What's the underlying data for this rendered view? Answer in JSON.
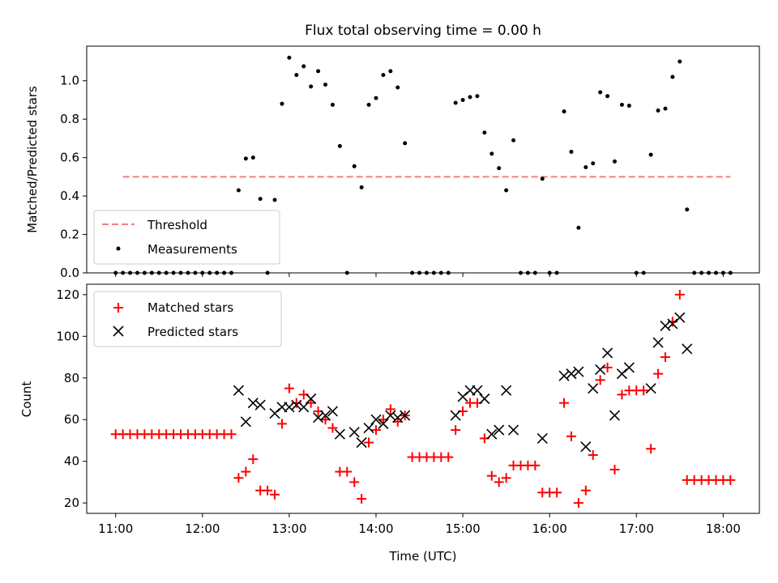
{
  "chart_data": [
    {
      "type": "scatter",
      "title": "Flux total observing time = 0.00 h",
      "xlabel": "",
      "ylabel": "Matched/Predicted stars",
      "xlim": [
        "10:40",
        "18:25"
      ],
      "ylim": [
        0,
        1.18
      ],
      "yticks": [
        "0.0",
        "0.2",
        "0.4",
        "0.6",
        "0.8",
        "1.0"
      ],
      "legend_position": "lower-left",
      "threshold": {
        "name": "Threshold",
        "value": 0.5,
        "x_range": [
          "11:05",
          "18:05"
        ],
        "color": "#f08080"
      },
      "series": [
        {
          "name": "Measurements",
          "color": "#000000",
          "points": [
            [
              "11:00",
              0
            ],
            [
              "11:05",
              0
            ],
            [
              "11:10",
              0
            ],
            [
              "11:15",
              0
            ],
            [
              "11:20",
              0
            ],
            [
              "11:25",
              0
            ],
            [
              "11:30",
              0
            ],
            [
              "11:35",
              0
            ],
            [
              "11:40",
              0
            ],
            [
              "11:45",
              0
            ],
            [
              "11:50",
              0
            ],
            [
              "11:55",
              0
            ],
            [
              "12:00",
              0
            ],
            [
              "12:05",
              0
            ],
            [
              "12:10",
              0
            ],
            [
              "12:15",
              0
            ],
            [
              "12:20",
              0
            ],
            [
              "12:25",
              0.43
            ],
            [
              "12:30",
              0.595
            ],
            [
              "12:35",
              0.6
            ],
            [
              "12:40",
              0.385
            ],
            [
              "12:45",
              0
            ],
            [
              "12:50",
              0.38
            ],
            [
              "12:55",
              0.88
            ],
            [
              "13:00",
              1.12
            ],
            [
              "13:05",
              1.03
            ],
            [
              "13:10",
              1.075
            ],
            [
              "13:15",
              0.97
            ],
            [
              "13:20",
              1.05
            ],
            [
              "13:25",
              0.98
            ],
            [
              "13:30",
              0.875
            ],
            [
              "13:35",
              0.66
            ],
            [
              "13:40",
              0
            ],
            [
              "13:45",
              0.555
            ],
            [
              "13:50",
              0.445
            ],
            [
              "13:55",
              0.875
            ],
            [
              "14:00",
              0.91
            ],
            [
              "14:05",
              1.03
            ],
            [
              "14:10",
              1.05
            ],
            [
              "14:15",
              0.965
            ],
            [
              "14:20",
              0.675
            ],
            [
              "14:25",
              0
            ],
            [
              "14:30",
              0
            ],
            [
              "14:35",
              0
            ],
            [
              "14:40",
              0
            ],
            [
              "14:45",
              0
            ],
            [
              "14:50",
              0
            ],
            [
              "14:55",
              0.885
            ],
            [
              "15:00",
              0.9
            ],
            [
              "15:05",
              0.915
            ],
            [
              "15:10",
              0.92
            ],
            [
              "15:15",
              0.73
            ],
            [
              "15:20",
              0.62
            ],
            [
              "15:25",
              0.545
            ],
            [
              "15:30",
              0.43
            ],
            [
              "15:35",
              0.69
            ],
            [
              "15:40",
              0
            ],
            [
              "15:45",
              0
            ],
            [
              "15:50",
              0
            ],
            [
              "15:55",
              0.49
            ],
            [
              "16:00",
              0
            ],
            [
              "16:05",
              0
            ],
            [
              "16:10",
              0.84
            ],
            [
              "16:15",
              0.63
            ],
            [
              "16:20",
              0.235
            ],
            [
              "16:25",
              0.55
            ],
            [
              "16:30",
              0.57
            ],
            [
              "16:35",
              0.94
            ],
            [
              "16:40",
              0.92
            ],
            [
              "16:45",
              0.58
            ],
            [
              "16:50",
              0.875
            ],
            [
              "16:55",
              0.87
            ],
            [
              "17:00",
              0
            ],
            [
              "17:05",
              0
            ],
            [
              "17:10",
              0.615
            ],
            [
              "17:15",
              0.845
            ],
            [
              "17:20",
              0.855
            ],
            [
              "17:25",
              1.02
            ],
            [
              "17:30",
              1.1
            ],
            [
              "17:35",
              0.33
            ],
            [
              "17:40",
              0
            ],
            [
              "17:45",
              0
            ],
            [
              "17:50",
              0
            ],
            [
              "17:55",
              0
            ],
            [
              "18:00",
              0
            ],
            [
              "18:05",
              0
            ]
          ]
        }
      ]
    },
    {
      "type": "scatter",
      "title": "",
      "xlabel": "Time (UTC)",
      "ylabel": "Count",
      "xlim": [
        "10:40",
        "18:25"
      ],
      "ylim": [
        15,
        125
      ],
      "xticks": [
        "11:00",
        "12:00",
        "13:00",
        "14:00",
        "15:00",
        "16:00",
        "17:00",
        "18:00"
      ],
      "yticks": [
        "20",
        "40",
        "60",
        "80",
        "100",
        "120"
      ],
      "legend_position": "upper-left",
      "series": [
        {
          "name": "Matched stars",
          "marker": "plus",
          "color": "#ff0000",
          "points": [
            [
              "11:00",
              53
            ],
            [
              "11:05",
              53
            ],
            [
              "11:10",
              53
            ],
            [
              "11:15",
              53
            ],
            [
              "11:20",
              53
            ],
            [
              "11:25",
              53
            ],
            [
              "11:30",
              53
            ],
            [
              "11:35",
              53
            ],
            [
              "11:40",
              53
            ],
            [
              "11:45",
              53
            ],
            [
              "11:50",
              53
            ],
            [
              "11:55",
              53
            ],
            [
              "12:00",
              53
            ],
            [
              "12:05",
              53
            ],
            [
              "12:10",
              53
            ],
            [
              "12:15",
              53
            ],
            [
              "12:20",
              53
            ],
            [
              "12:25",
              32
            ],
            [
              "12:30",
              35
            ],
            [
              "12:35",
              41
            ],
            [
              "12:40",
              26
            ],
            [
              "12:45",
              26
            ],
            [
              "12:50",
              24
            ],
            [
              "12:55",
              58
            ],
            [
              "13:00",
              75
            ],
            [
              "13:05",
              68
            ],
            [
              "13:10",
              72
            ],
            [
              "13:15",
              68
            ],
            [
              "13:20",
              64
            ],
            [
              "13:25",
              60
            ],
            [
              "13:30",
              56
            ],
            [
              "13:35",
              35
            ],
            [
              "13:40",
              35
            ],
            [
              "13:45",
              30
            ],
            [
              "13:50",
              22
            ],
            [
              "13:55",
              49
            ],
            [
              "14:00",
              55
            ],
            [
              "14:05",
              60
            ],
            [
              "14:10",
              65
            ],
            [
              "14:15",
              59
            ],
            [
              "14:20",
              62
            ],
            [
              "14:25",
              42
            ],
            [
              "14:30",
              42
            ],
            [
              "14:35",
              42
            ],
            [
              "14:40",
              42
            ],
            [
              "14:45",
              42
            ],
            [
              "14:50",
              42
            ],
            [
              "14:55",
              55
            ],
            [
              "15:00",
              64
            ],
            [
              "15:05",
              68
            ],
            [
              "15:10",
              68
            ],
            [
              "15:15",
              51
            ],
            [
              "15:20",
              33
            ],
            [
              "15:25",
              30
            ],
            [
              "15:30",
              32
            ],
            [
              "15:35",
              38
            ],
            [
              "15:40",
              38
            ],
            [
              "15:45",
              38
            ],
            [
              "15:50",
              38
            ],
            [
              "15:55",
              25
            ],
            [
              "16:00",
              25
            ],
            [
              "16:05",
              25
            ],
            [
              "16:10",
              68
            ],
            [
              "16:15",
              52
            ],
            [
              "16:20",
              20
            ],
            [
              "16:25",
              26
            ],
            [
              "16:30",
              43
            ],
            [
              "16:35",
              79
            ],
            [
              "16:40",
              85
            ],
            [
              "16:45",
              36
            ],
            [
              "16:50",
              72
            ],
            [
              "16:55",
              74
            ],
            [
              "17:00",
              74
            ],
            [
              "17:05",
              74
            ],
            [
              "17:10",
              46
            ],
            [
              "17:15",
              82
            ],
            [
              "17:20",
              90
            ],
            [
              "17:25",
              107
            ],
            [
              "17:30",
              120
            ],
            [
              "17:35",
              31
            ],
            [
              "17:40",
              31
            ],
            [
              "17:45",
              31
            ],
            [
              "17:50",
              31
            ],
            [
              "17:55",
              31
            ],
            [
              "18:00",
              31
            ],
            [
              "18:05",
              31
            ]
          ]
        },
        {
          "name": "Predicted stars",
          "marker": "x",
          "color": "#000000",
          "points": [
            [
              "12:25",
              74
            ],
            [
              "12:30",
              59
            ],
            [
              "12:35",
              68
            ],
            [
              "12:40",
              67
            ],
            [
              "12:50",
              63
            ],
            [
              "12:55",
              66
            ],
            [
              "13:00",
              66
            ],
            [
              "13:05",
              67
            ],
            [
              "13:10",
              66
            ],
            [
              "13:15",
              70
            ],
            [
              "13:20",
              61
            ],
            [
              "13:25",
              62
            ],
            [
              "13:30",
              64
            ],
            [
              "13:35",
              53
            ],
            [
              "13:45",
              54
            ],
            [
              "13:50",
              49
            ],
            [
              "13:55",
              56
            ],
            [
              "14:00",
              60
            ],
            [
              "14:05",
              58
            ],
            [
              "14:10",
              62
            ],
            [
              "14:15",
              61
            ],
            [
              "14:20",
              62
            ],
            [
              "14:55",
              62
            ],
            [
              "15:00",
              71
            ],
            [
              "15:05",
              74
            ],
            [
              "15:10",
              74
            ],
            [
              "15:15",
              70
            ],
            [
              "15:20",
              53
            ],
            [
              "15:25",
              55
            ],
            [
              "15:30",
              74
            ],
            [
              "15:35",
              55
            ],
            [
              "15:55",
              51
            ],
            [
              "16:10",
              81
            ],
            [
              "16:15",
              82
            ],
            [
              "16:20",
              83
            ],
            [
              "16:25",
              47
            ],
            [
              "16:30",
              75
            ],
            [
              "16:35",
              84
            ],
            [
              "16:40",
              92
            ],
            [
              "16:45",
              62
            ],
            [
              "16:50",
              82
            ],
            [
              "16:55",
              85
            ],
            [
              "17:10",
              75
            ],
            [
              "17:15",
              97
            ],
            [
              "17:20",
              105
            ],
            [
              "17:25",
              106
            ],
            [
              "17:30",
              109
            ],
            [
              "17:35",
              94
            ]
          ]
        }
      ]
    }
  ]
}
